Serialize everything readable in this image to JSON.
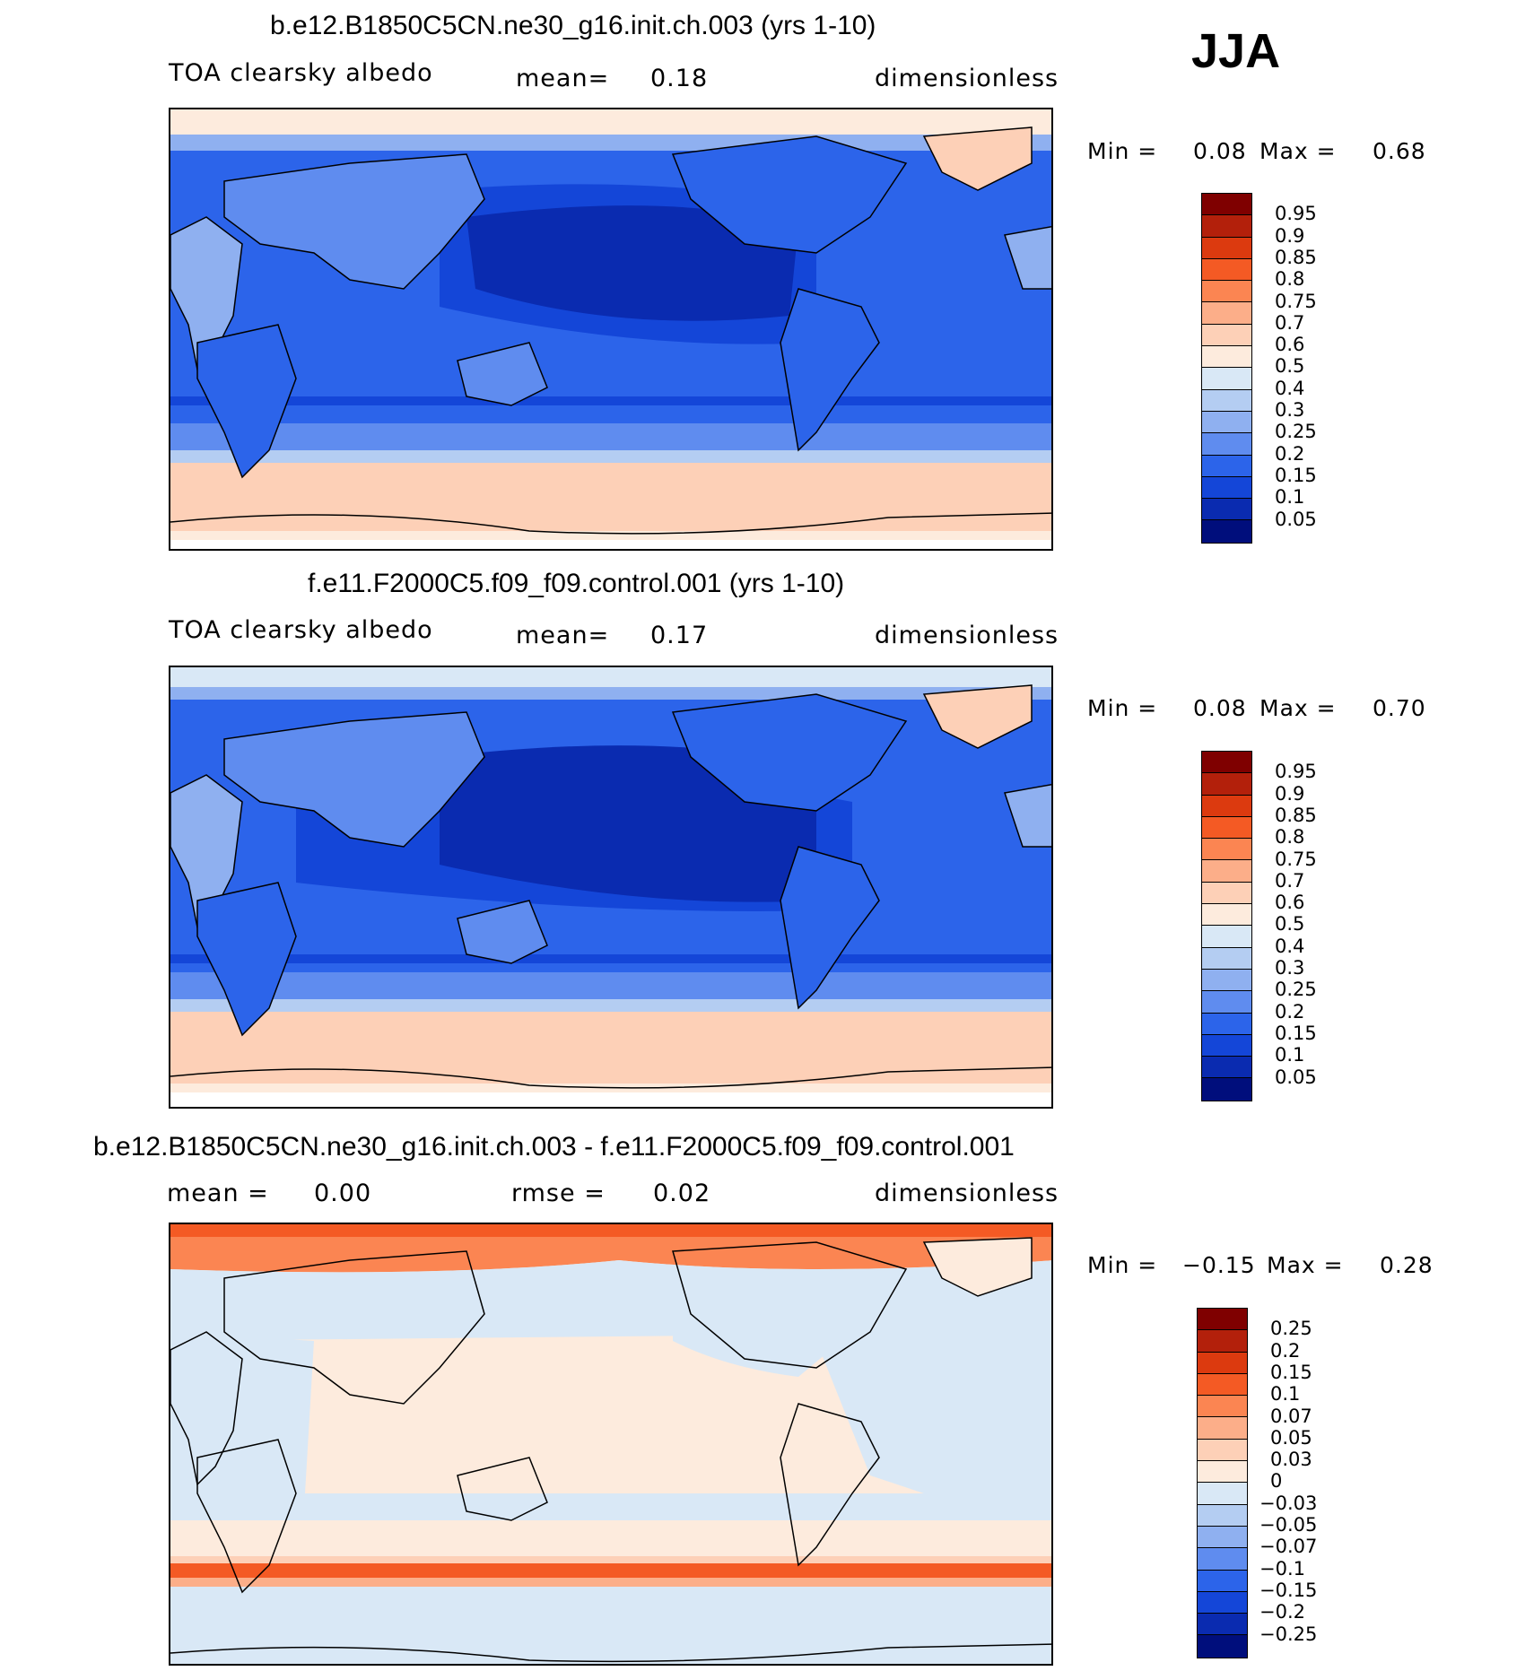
{
  "season": "JJA",
  "panels": [
    {
      "title": "b.e12.B1850C5CN.ne30_g16.init.ch.003 (yrs 1-10)",
      "left_label": "TOA clearsky albedo",
      "mid_label": "mean=",
      "mid_value": "0.18",
      "right_label": "dimensionless",
      "min_label": "Min =",
      "min_value": "0.08",
      "max_label": "Max =",
      "max_value": "0.68"
    },
    {
      "title": "f.e11.F2000C5.f09_f09.control.001 (yrs 1-10)",
      "left_label": "TOA clearsky albedo",
      "mid_label": "mean=",
      "mid_value": "0.17",
      "right_label": "dimensionless",
      "min_label": "Min =",
      "min_value": "0.08",
      "max_label": "Max =",
      "max_value": "0.70"
    },
    {
      "title": "b.e12.B1850C5CN.ne30_g16.init.ch.003 - f.e11.F2000C5.f09_f09.control.001",
      "left_label": "mean =",
      "left_value": "0.00",
      "mid_label": "rmse =",
      "mid_value": "0.02",
      "right_label": "dimensionless",
      "min_label": "Min =",
      "min_value": "−0.15",
      "max_label": "Max =",
      "max_value": "0.28"
    }
  ],
  "colorbars": {
    "albedo": {
      "labels": [
        "0.95",
        "0.9",
        "0.85",
        "0.8",
        "0.75",
        "0.7",
        "0.6",
        "0.5",
        "0.4",
        "0.3",
        "0.25",
        "0.2",
        "0.15",
        "0.1",
        "0.05"
      ],
      "colors": [
        "#7f0000",
        "#b3200b",
        "#dc3a0f",
        "#f45a24",
        "#fb8552",
        "#fcae89",
        "#fdd0b7",
        "#fdebdd",
        "#d9e8f6",
        "#b4cdf2",
        "#8fb0f0",
        "#5f8cef",
        "#2c64ea",
        "#1446d8",
        "#0a2bb0",
        "#000e7c"
      ]
    },
    "diff": {
      "labels": [
        "0.25",
        "0.2",
        "0.15",
        "0.1",
        "0.07",
        "0.05",
        "0.03",
        "0",
        "−0.03",
        "−0.05",
        "−0.07",
        "−0.1",
        "−0.15",
        "−0.2",
        "−0.25"
      ],
      "colors": [
        "#7f0000",
        "#b3200b",
        "#dc3a0f",
        "#f45a24",
        "#fb8552",
        "#fcae89",
        "#fdd0b7",
        "#fdebdd",
        "#d9e8f6",
        "#b4cdf2",
        "#8fb0f0",
        "#5f8cef",
        "#2c64ea",
        "#1446d8",
        "#0a2bb0",
        "#000e7c"
      ]
    }
  },
  "map_colors": {
    "polar": "#fdd0b7",
    "polar_light": "#fdebdd",
    "ocean_deep": "#0a2bb0",
    "ocean": "#1446d8",
    "ocean_mid": "#2c64ea",
    "land": "#2c64ea",
    "land_bright": "#5f8cef",
    "desert": "#8fb0f0",
    "diff_zero_pos": "#fdebdd",
    "diff_zero_neg": "#d9e8f6",
    "diff_hot": "#f45a24",
    "diff_warm": "#fb8552"
  }
}
